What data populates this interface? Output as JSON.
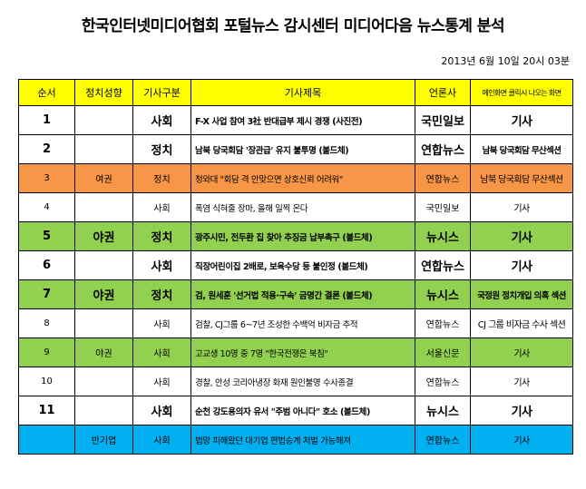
{
  "title": "한국인터넷미디어협회 포털뉴스 감시센터 미디어다음 뉴스통계 분석",
  "timestamp": "2013년 6월 10일 20시 03분",
  "colors": {
    "header": "#ffff00",
    "orange": "#f79646",
    "green": "#92d050",
    "blue": "#00b0f0"
  },
  "table": {
    "headers": [
      "순서",
      "정치성향",
      "기사구분",
      "기사제목",
      "언론사",
      "메인화면 클릭시 나오는 화면"
    ],
    "rows": [
      {
        "seq": "1",
        "orientation": "",
        "category": "사회",
        "headline": "F-X 사업 참여 3社 반대급부 제시 경쟁 (사진전)",
        "publisher": "국민일보",
        "screen": "기사",
        "style": "bold",
        "color": "bg-white",
        "screen_size": "big"
      },
      {
        "seq": "2",
        "orientation": "",
        "category": "정치",
        "headline": "남북 당국회담 '장관급' 유지 불투명 (볼드체)",
        "publisher": "연합뉴스",
        "screen": "남북 당국회담 무산섹션",
        "style": "bold",
        "color": "bg-white",
        "screen_size": "small"
      },
      {
        "seq": "3",
        "orientation": "여권",
        "category": "정치",
        "headline": "청와대 \"회담 격 안맞으면 상호신뢰 어려워\"",
        "publisher": "연합뉴스",
        "screen": "남북 당국회담 무산섹션",
        "style": "normal",
        "color": "bg-orange",
        "screen_size": "normal"
      },
      {
        "seq": "4",
        "orientation": "",
        "category": "사회",
        "headline": "폭염 식혀줄 장마, 올해 일찍 온다",
        "publisher": "국민일보",
        "screen": "기사",
        "style": "normal",
        "color": "bg-white",
        "screen_size": "normal"
      },
      {
        "seq": "5",
        "orientation": "야권",
        "category": "정치",
        "headline": "광주시민, 전두환 집 찾아 추징금 납부촉구 (볼드체)",
        "publisher": "뉴시스",
        "screen": "기사",
        "style": "bold",
        "color": "bg-green",
        "screen_size": "big"
      },
      {
        "seq": "6",
        "orientation": "",
        "category": "사회",
        "headline": "직장어린이집 2배로, 보육수당 등 불인정 (볼드체)",
        "publisher": "연합뉴스",
        "screen": "기사",
        "style": "bold",
        "color": "bg-white",
        "screen_size": "big"
      },
      {
        "seq": "7",
        "orientation": "야권",
        "category": "정치",
        "headline": "검, 원세훈 '선거법 적용·구속' 금명간 결론 (볼드체)",
        "publisher": "뉴시스",
        "screen": "국정원 정치개입 의혹 섹션",
        "style": "bold",
        "color": "bg-green",
        "screen_size": "small"
      },
      {
        "seq": "8",
        "orientation": "",
        "category": "사회",
        "headline": "검찰, CJ그룹 6~7년 조성한 수백억 비자금 추적",
        "publisher": "연합뉴스",
        "screen": "CJ 그룹 비자금 수사 섹션",
        "style": "normal",
        "color": "bg-white",
        "screen_size": "normal"
      },
      {
        "seq": "9",
        "orientation": "야권",
        "category": "사회",
        "headline": "고교생 10명 중 7명 \"한국전쟁은 북침\"",
        "publisher": "서울신문",
        "screen": "기사",
        "style": "normal",
        "color": "bg-green",
        "screen_size": "normal"
      },
      {
        "seq": "10",
        "orientation": "",
        "category": "사회",
        "headline": "경찰, 안성 코리아냉장 화재 원인불명 수사종결",
        "publisher": "연합뉴스",
        "screen": "기사",
        "style": "normal",
        "color": "bg-white",
        "screen_size": "normal"
      },
      {
        "seq": "11",
        "orientation": "",
        "category": "사회",
        "headline": "순천 강도용의자 유서 \"주범 아니다\" 호소 (볼드체)",
        "publisher": "뉴시스",
        "screen": "기사",
        "style": "bold",
        "color": "bg-white",
        "screen_size": "big"
      },
      {
        "seq": "",
        "orientation": "반기업",
        "category": "사회",
        "headline": "법망 피해왔던 대기업 편법승계 처벌 가능해져",
        "publisher": "연합뉴스",
        "screen": "기사",
        "style": "normal",
        "color": "bg-blue",
        "screen_size": "normal"
      }
    ]
  }
}
